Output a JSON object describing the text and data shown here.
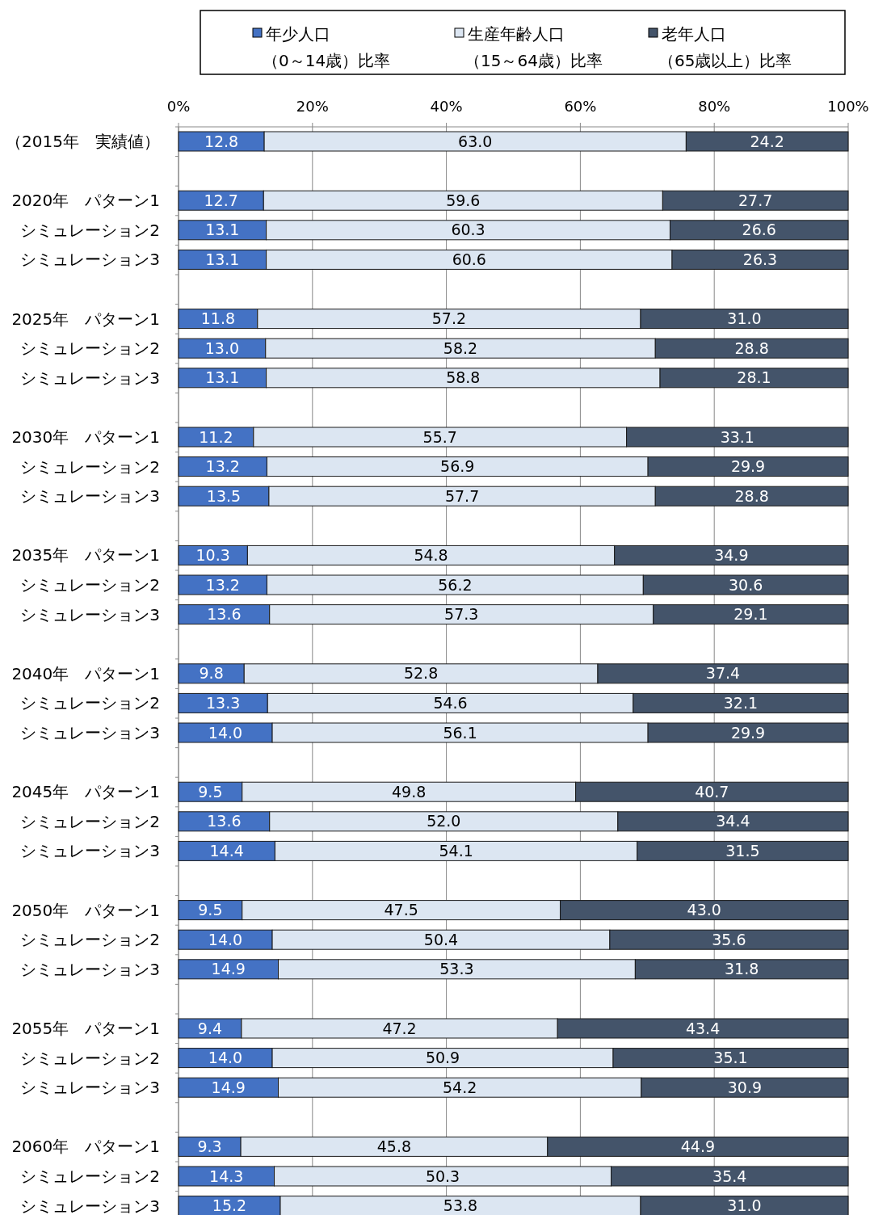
{
  "chart_data": {
    "type": "bar",
    "orientation": "horizontal",
    "stacked": true,
    "grid": "x",
    "legend": "top",
    "categories": [
      "（2015年　実績値）",
      null,
      "2020年　パターン1",
      "シミュレーション2",
      "シミュレーション3",
      null,
      "2025年　パターン1",
      "シミュレーション2",
      "シミュレーション3",
      null,
      "2030年　パターン1",
      "シミュレーション2",
      "シミュレーション3",
      null,
      "2035年　パターン1",
      "シミュレーション2",
      "シミュレーション3",
      null,
      "2040年　パターン1",
      "シミュレーション2",
      "シミュレーション3",
      null,
      "2045年　パターン1",
      "シミュレーション2",
      "シミュレーション3",
      null,
      "2050年　パターン1",
      "シミュレーション2",
      "シミュレーション3",
      null,
      "2055年　パターン1",
      "シミュレーション2",
      "シミュレーション3",
      null,
      "2060年　パターン1",
      "シミュレーション2",
      "シミュレーション3"
    ],
    "xlim": [
      0,
      100
    ],
    "xticks": [
      {
        "value": 0,
        "label": "0%"
      },
      {
        "value": 20,
        "label": "20%"
      },
      {
        "value": 40,
        "label": "40%"
      },
      {
        "value": 60,
        "label": "60%"
      },
      {
        "value": 80,
        "label": "80%"
      },
      {
        "value": 100,
        "label": "100%"
      }
    ],
    "series": [
      {
        "name": "年少人口（0～14歳）比率",
        "color": "#4472c4",
        "values": [
          12.8,
          null,
          12.7,
          13.1,
          13.1,
          null,
          11.8,
          13.0,
          13.1,
          null,
          11.2,
          13.2,
          13.5,
          null,
          10.3,
          13.2,
          13.6,
          null,
          9.8,
          13.3,
          14.0,
          null,
          9.5,
          13.6,
          14.4,
          null,
          9.5,
          14.0,
          14.9,
          null,
          9.4,
          14.0,
          14.9,
          null,
          9.3,
          14.3,
          15.2
        ],
        "value_labels": [
          "12.8",
          null,
          "12.7",
          "13.1",
          "13.1",
          null,
          "11.8",
          "13.0",
          "13.1",
          null,
          "11.2",
          "13.2",
          "13.5",
          null,
          "10.3",
          "13.2",
          "13.6",
          null,
          "9.8",
          "13.3",
          "14.0",
          null,
          "9.5",
          "13.6",
          "14.4",
          null,
          "9.5",
          "14.0",
          "14.9",
          null,
          "9.4",
          "14.0",
          "14.9",
          null,
          "9.3",
          "14.3",
          "15.2"
        ]
      },
      {
        "name": "生産年齢人口（15～64歳）比率",
        "color": "#dce6f2",
        "values": [
          63.0,
          null,
          59.6,
          60.3,
          60.6,
          null,
          57.2,
          58.2,
          58.8,
          null,
          55.7,
          56.9,
          57.7,
          null,
          54.8,
          56.2,
          57.3,
          null,
          52.8,
          54.6,
          56.1,
          null,
          49.8,
          52.0,
          54.1,
          null,
          47.5,
          50.4,
          53.3,
          null,
          47.2,
          50.9,
          54.2,
          null,
          45.8,
          50.3,
          53.8
        ],
        "value_labels": [
          "63.0",
          null,
          "59.6",
          "60.3",
          "60.6",
          null,
          "57.2",
          "58.2",
          "58.8",
          null,
          "55.7",
          "56.9",
          "57.7",
          null,
          "54.8",
          "56.2",
          "57.3",
          null,
          "52.8",
          "54.6",
          "56.1",
          null,
          "49.8",
          "52.0",
          "54.1",
          null,
          "47.5",
          "50.4",
          "53.3",
          null,
          "47.2",
          "50.9",
          "54.2",
          null,
          "45.8",
          "50.3",
          "53.8"
        ]
      },
      {
        "name": "老年人口（65歳以上）比率",
        "color": "#44546a",
        "values": [
          24.2,
          null,
          27.7,
          26.6,
          26.3,
          null,
          31.0,
          28.8,
          28.1,
          null,
          33.1,
          29.9,
          28.8,
          null,
          34.9,
          30.6,
          29.1,
          null,
          37.4,
          32.1,
          29.9,
          null,
          40.7,
          34.4,
          31.5,
          null,
          43.0,
          35.6,
          31.8,
          null,
          43.4,
          35.1,
          30.9,
          null,
          44.9,
          35.4,
          31.0
        ],
        "value_labels": [
          "24.2",
          null,
          "27.7",
          "26.6",
          "26.3",
          null,
          "31.0",
          "28.8",
          "28.1",
          null,
          "33.1",
          "29.9",
          "28.8",
          null,
          "34.9",
          "30.6",
          "29.1",
          null,
          "37.4",
          "32.1",
          "29.9",
          null,
          "40.7",
          "34.4",
          "31.5",
          null,
          "43.0",
          "35.6",
          "31.8",
          null,
          "43.4",
          "35.1",
          "30.9",
          null,
          "44.9",
          "35.4",
          "31.0"
        ]
      }
    ]
  }
}
